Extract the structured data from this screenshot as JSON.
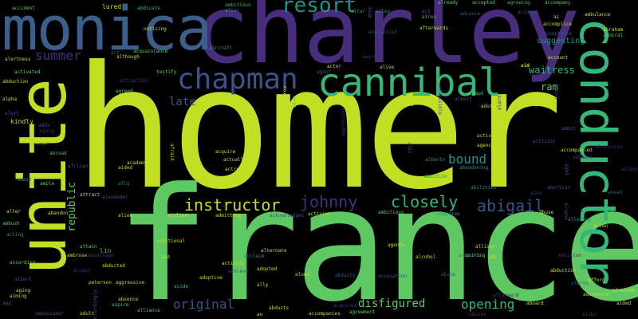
{
  "palette": {
    "background": "#000000",
    "yellow_green": "#c2df23",
    "green": "#5ec962",
    "teal_green": "#35b779",
    "teal": "#21918c",
    "blue": "#2c728e",
    "indigo": "#3b528b",
    "purple": "#472d7b",
    "dark_purple": "#440154"
  },
  "words": {
    "homer": "homer",
    "france": "france",
    "charley": "charley",
    "monica": "monica",
    "unite": "unite",
    "conductor": "conductor",
    "cannibal": "cannibal",
    "chapman": "chapman",
    "resort": "resort",
    "summer": "summer",
    "instructor": "instructor",
    "johnny": "johnny",
    "closely": "closely",
    "abigail": "abigail",
    "bound": "bound",
    "waitress": "waitress",
    "ram": "ram",
    "late": "late",
    "suggesting": "suggesting",
    "original": "original",
    "disfigured": "disfigured",
    "opening": "opening",
    "republic": "republic",
    "lured": "lured",
    "accident": "accident",
    "activated": "activated",
    "abdicate": "abdicate",
    "noticing": "noticing",
    "attraction": "attraction",
    "kindly": "kindly",
    "acid": "acid",
    "abduction": "abduction",
    "abroad": "abroad",
    "agreed": "agreed",
    "actress": "actress",
    "academy": "academy",
    "acquire": "acquire",
    "african": "african",
    "accompanied": "accompanied",
    "ambulance": "ambulance",
    "advance": "advance",
    "accepted": "accepted",
    "account": "account",
    "adoptive": "adoptive",
    "alcohol": "alcohol",
    "alone": "alone",
    "abducted": "abducted",
    "ally": "ally",
    "aging": "aging",
    "alliance": "alliance",
    "aided": "aided",
    "adventure": "adventure",
    "advanced": "advanced",
    "afford": "afford",
    "alternate": "alternate",
    "abandon": "abandon",
    "activity": "activity",
    "acting": "acting",
    "according": "according",
    "aggressive": "aggressive",
    "accompanies": "accompanies",
    "agreement": "agreement",
    "afterwards": "afterwards",
    "admitting": "admitting",
    "additional": "additional",
    "acquaintance": "acquaintance",
    "aircraft": "aircraft",
    "although": "although",
    "testify": "testify",
    "attract": "attract",
    "alexander": "alexander",
    "accused": "accused",
    "already": "already",
    "agreeing": "agreeing",
    "accompany": "accompany",
    "acceptance": "acceptance",
    "ambrose": "ambrose",
    "lin": "lin",
    "accept": "accept",
    "abilities": "abilities",
    "adapted": "adapted",
    "ambitious": "ambitious",
    "absence": "absence",
    "adult": "adult",
    "peterson": "peterson",
    "alien": "alien",
    "adopted": "adopted",
    "aside": "aside",
    "altar": "altar",
    "airline": "airline",
    "afraid": "afraid",
    "acknowledges": "acknowledges",
    "abducts": "abducts",
    "awards": "awards",
    "administrator": "administrator",
    "ambassador": "ambassador",
    "abandoning": "abandoning",
    "admit": "admit",
    "amy": "amy",
    "ai": "ai",
    "accurate": "accurate",
    "ace": "ace",
    "albert": "albert",
    "agency": "agency",
    "aiming": "aiming",
    "ad": "ad",
    "an": "an",
    "aim": "aim",
    "actor": "actor",
    "agent": "agent",
    "ample": "ample",
    "aspire": "aspire",
    "adventurous": "adventurous",
    "alike": "alike",
    "acquired": "acquired",
    "affair": "affair",
    "aid": "aid",
    "admiral": "admiral",
    "advice": "advice",
    "alarm": "alarm",
    "act": "act",
    "aires": "aires",
    "alley": "alley",
    "evangelist": "evangelist",
    "also": "also",
    "actually": "actually",
    "achieve": "achieve",
    "acquires": "acquires",
    "alertness": "alertness",
    "accidentally": "accidentally",
    "accomplice": "accomplice",
    "activist": "activist",
    "abandoned": "abandoned",
    "abraham": "abraham",
    "accusation": "accusation",
    "abortion": "abortion",
    "alert": "alert",
    "ailing": "ailing",
    "aspiring": "aspiring",
    "agenda": "agenda",
    "aliens": "aliens",
    "amber": "amber",
    "alien2": "alien",
    "aims": "aims",
    "acute": "acute",
    "adds": "adds",
    "allison": "allison",
    "alberto": "alberto",
    "alerts": "alerts",
    "ambush": "ambush",
    "amazing": "amazing",
    "ambition": "ambition",
    "adopt": "adopt",
    "add": "add",
    "alive": "alive",
    "ahead": "ahead",
    "abuse": "abuse",
    "acquiring": "acquiring",
    "actual": "actual",
    "allowing": "allowing",
    "accounts": "accounts",
    "aware": "aware",
    "abuses": "abuses",
    "albeit": "albeit",
    "aboard": "aboard",
    "afterward": "afterward",
    "atlanta": "atlanta",
    "aimed": "aimed",
    "akira": "akira",
    "alan": "alan",
    "alibi": "alibi",
    "advise": "advise",
    "amounts": "amounts",
    "accuses": "accuses",
    "amounted": "amounted",
    "affect": "affect",
    "add2": "add",
    "attain": "attain",
    "apart": "apart",
    "allies": "allies",
    "already2": "already",
    "accordingly": "accordingly",
    "adam": "adam",
    "absolute": "absolute",
    "affirm": "affirm",
    "aggression": "aggression",
    "airport": "airport",
    "aforementioned": "aforementioned",
    "all": "all",
    "alias": "alias",
    "ambient": "ambient",
    "aided2": "aided",
    "almost": "almost",
    "airborne": "airborne",
    "adulthood": "adulthood",
    "adam2": "adam",
    "affection": "affection",
    "agreements": "agreements",
    "alexandra": "alexandra",
    "alter": "alter",
    "altered": "altered",
    "ability": "ability",
    "alleged": "alleged",
    "alcoholic": "alcoholic",
    "accessible": "accessible",
    "ages": "ages",
    "action": "action",
    "appointed": "appointed",
    "adversary": "adversary",
    "aging2": "aging",
    "agrees": "agrees",
    "aircrew": "aircrew",
    "arrange": "arrange",
    "aspects": "aspects",
    "acclaim": "acclaim",
    "acclaimed": "acclaimed",
    "alongside": "alongside",
    "answer": "answer",
    "anchor": "anchor",
    "advantage": "advantage",
    "adrian": "adrian",
    "aircraft2": "aircraft",
    "adventures": "adventures",
    "alps": "alps",
    "alpha": "alpha",
    "adams": "adams",
    "apology": "apology",
    "amanda": "amanda",
    "accidental": "accidental",
    "anger": "anger",
    "ages2": "ages",
    "aged": "aged",
    "antidote": "antidote",
    "alarmed": "alarmed",
    "acclamation": "acclamation"
  }
}
